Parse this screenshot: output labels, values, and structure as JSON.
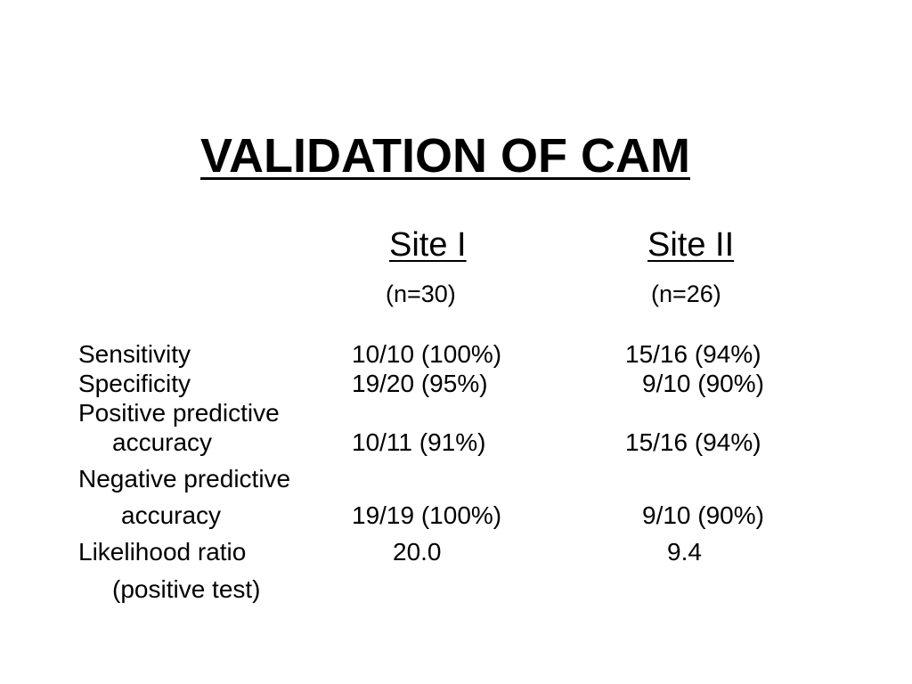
{
  "slide": {
    "title": "VALIDATION OF CAM",
    "columns": [
      {
        "name": "Site I",
        "n": "(n=30)"
      },
      {
        "name": "Site II",
        "n": "(n=26)"
      }
    ],
    "rows": [
      {
        "label": "Sensitivity",
        "site1": "10/10 (100%)",
        "site2": "15/16 (94%)"
      },
      {
        "label": "Specificity",
        "site1": "19/20 (95%)",
        "site2": "9/10 (90%)"
      },
      {
        "label": "Positive predictive",
        "label_cont": "accuracy",
        "site1": "10/11 (91%)",
        "site2": "15/16 (94%)"
      },
      {
        "label": "Negative predictive",
        "label_cont": "accuracy",
        "site1": "19/19 (100%)",
        "site2": "9/10 (90%)"
      },
      {
        "label": "Likelihood ratio",
        "label_cont": "(positive test)",
        "site1": "20.0",
        "site2": "9.4"
      }
    ]
  }
}
